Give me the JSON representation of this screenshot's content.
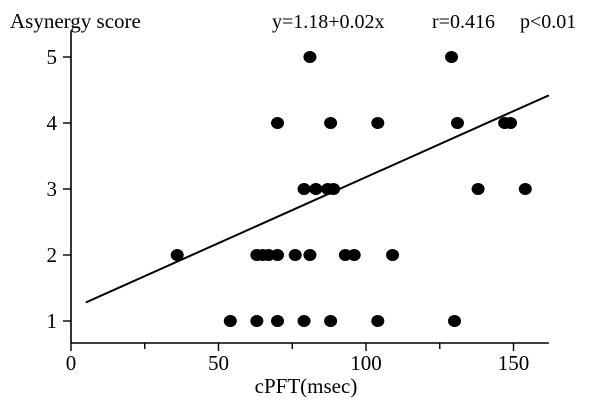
{
  "chart_data": {
    "type": "scatter",
    "ylabel": "Asynergy score",
    "xlabel": "cPFT(msec)",
    "annotation": {
      "equation": "y=1.18+0.02x",
      "r": "r=0.416",
      "p": "p<0.01"
    },
    "xlim": [
      0,
      162
    ],
    "ylim": [
      0.6,
      5.4
    ],
    "x_ticks": [
      0,
      50,
      100,
      150
    ],
    "x_tick_labels": [
      "0",
      "50",
      "100",
      "150"
    ],
    "x_minor_ticks": [
      25,
      75,
      125
    ],
    "y_ticks": [
      1,
      2,
      3,
      4,
      5
    ],
    "y_tick_labels": [
      "1",
      "2",
      "3",
      "4",
      "5"
    ],
    "grid": false,
    "points": [
      {
        "x": 81,
        "y": 5
      },
      {
        "x": 129,
        "y": 5
      },
      {
        "x": 70,
        "y": 4
      },
      {
        "x": 88,
        "y": 4
      },
      {
        "x": 104,
        "y": 4
      },
      {
        "x": 131,
        "y": 4
      },
      {
        "x": 147,
        "y": 4
      },
      {
        "x": 149,
        "y": 4
      },
      {
        "x": 79,
        "y": 3
      },
      {
        "x": 83,
        "y": 3
      },
      {
        "x": 87,
        "y": 3
      },
      {
        "x": 89,
        "y": 3
      },
      {
        "x": 138,
        "y": 3
      },
      {
        "x": 154,
        "y": 3
      },
      {
        "x": 36,
        "y": 2
      },
      {
        "x": 63,
        "y": 2
      },
      {
        "x": 65,
        "y": 2
      },
      {
        "x": 67,
        "y": 2
      },
      {
        "x": 70,
        "y": 2
      },
      {
        "x": 76,
        "y": 2
      },
      {
        "x": 81,
        "y": 2
      },
      {
        "x": 93,
        "y": 2
      },
      {
        "x": 96,
        "y": 2
      },
      {
        "x": 109,
        "y": 2
      },
      {
        "x": 54,
        "y": 1
      },
      {
        "x": 63,
        "y": 1
      },
      {
        "x": 70,
        "y": 1
      },
      {
        "x": 79,
        "y": 1
      },
      {
        "x": 88,
        "y": 1
      },
      {
        "x": 104,
        "y": 1
      },
      {
        "x": 130,
        "y": 1
      }
    ],
    "fit_line": {
      "intercept": 1.18,
      "slope": 0.02,
      "x_range": [
        5,
        162
      ]
    }
  }
}
